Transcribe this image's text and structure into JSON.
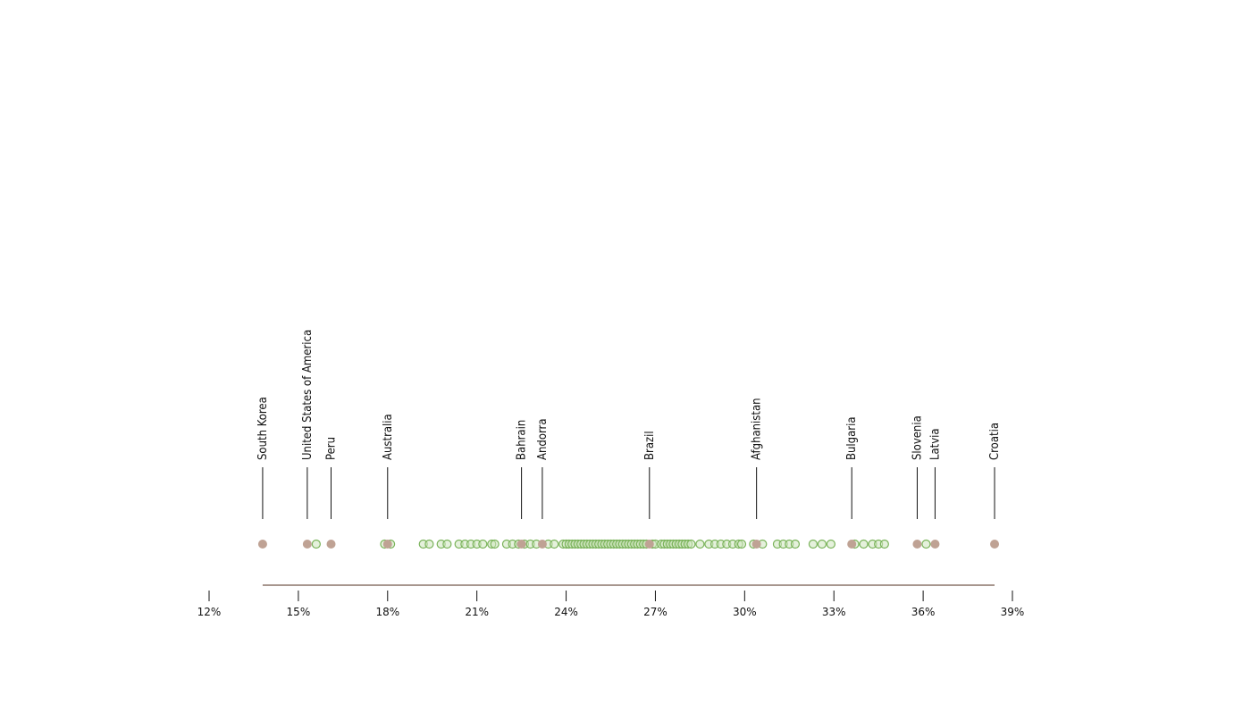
{
  "colors": {
    "highlight": "#bfa294",
    "other_fill": "#cfe5bf",
    "other_stroke": "#7ab35a",
    "range_line": "#8a7468",
    "axis": "#111111",
    "leader": "#111111"
  },
  "chart_data": {
    "type": "scatter",
    "title": "",
    "xlabel": "",
    "ylabel": "",
    "xlim": [
      12,
      39
    ],
    "tick_values": [
      12,
      15,
      18,
      21,
      24,
      27,
      30,
      33,
      36,
      39
    ],
    "tick_labels": [
      "12%",
      "15%",
      "18%",
      "21%",
      "24%",
      "27%",
      "30%",
      "33%",
      "36%",
      "39%"
    ],
    "range": [
      13.8,
      38.4
    ],
    "highlighted": [
      {
        "name": "South Korea",
        "value": 13.8
      },
      {
        "name": "United States of America",
        "value": 15.3
      },
      {
        "name": "Peru",
        "value": 16.1
      },
      {
        "name": "Australia",
        "value": 18.0
      },
      {
        "name": "Bahrain",
        "value": 22.5
      },
      {
        "name": "Andorra",
        "value": 23.2
      },
      {
        "name": "Brazil",
        "value": 26.8
      },
      {
        "name": "Afghanistan",
        "value": 30.4
      },
      {
        "name": "Bulgaria",
        "value": 33.6
      },
      {
        "name": "Slovenia",
        "value": 35.8
      },
      {
        "name": "Latvia",
        "value": 36.4
      },
      {
        "name": "Croatia",
        "value": 38.4
      }
    ],
    "others": [
      15.6,
      17.9,
      18.1,
      19.2,
      19.4,
      19.8,
      20.0,
      20.4,
      20.6,
      20.8,
      21.0,
      21.2,
      21.5,
      21.6,
      22.0,
      22.2,
      22.4,
      22.6,
      22.8,
      23.0,
      23.4,
      23.6,
      23.9,
      24.0,
      24.1,
      24.2,
      24.3,
      24.4,
      24.5,
      24.6,
      24.7,
      24.8,
      24.9,
      25.0,
      25.1,
      25.2,
      25.3,
      25.4,
      25.5,
      25.6,
      25.7,
      25.8,
      25.9,
      26.0,
      26.1,
      26.2,
      26.3,
      26.4,
      26.5,
      26.6,
      26.7,
      26.9,
      27.0,
      27.2,
      27.3,
      27.4,
      27.5,
      27.6,
      27.7,
      27.8,
      27.9,
      28.0,
      28.1,
      28.2,
      28.5,
      28.8,
      29.0,
      29.2,
      29.4,
      29.6,
      29.8,
      29.9,
      30.3,
      30.6,
      31.1,
      31.3,
      31.5,
      31.7,
      32.3,
      32.6,
      32.9,
      33.7,
      34.0,
      34.3,
      34.5,
      34.7,
      36.1
    ]
  }
}
